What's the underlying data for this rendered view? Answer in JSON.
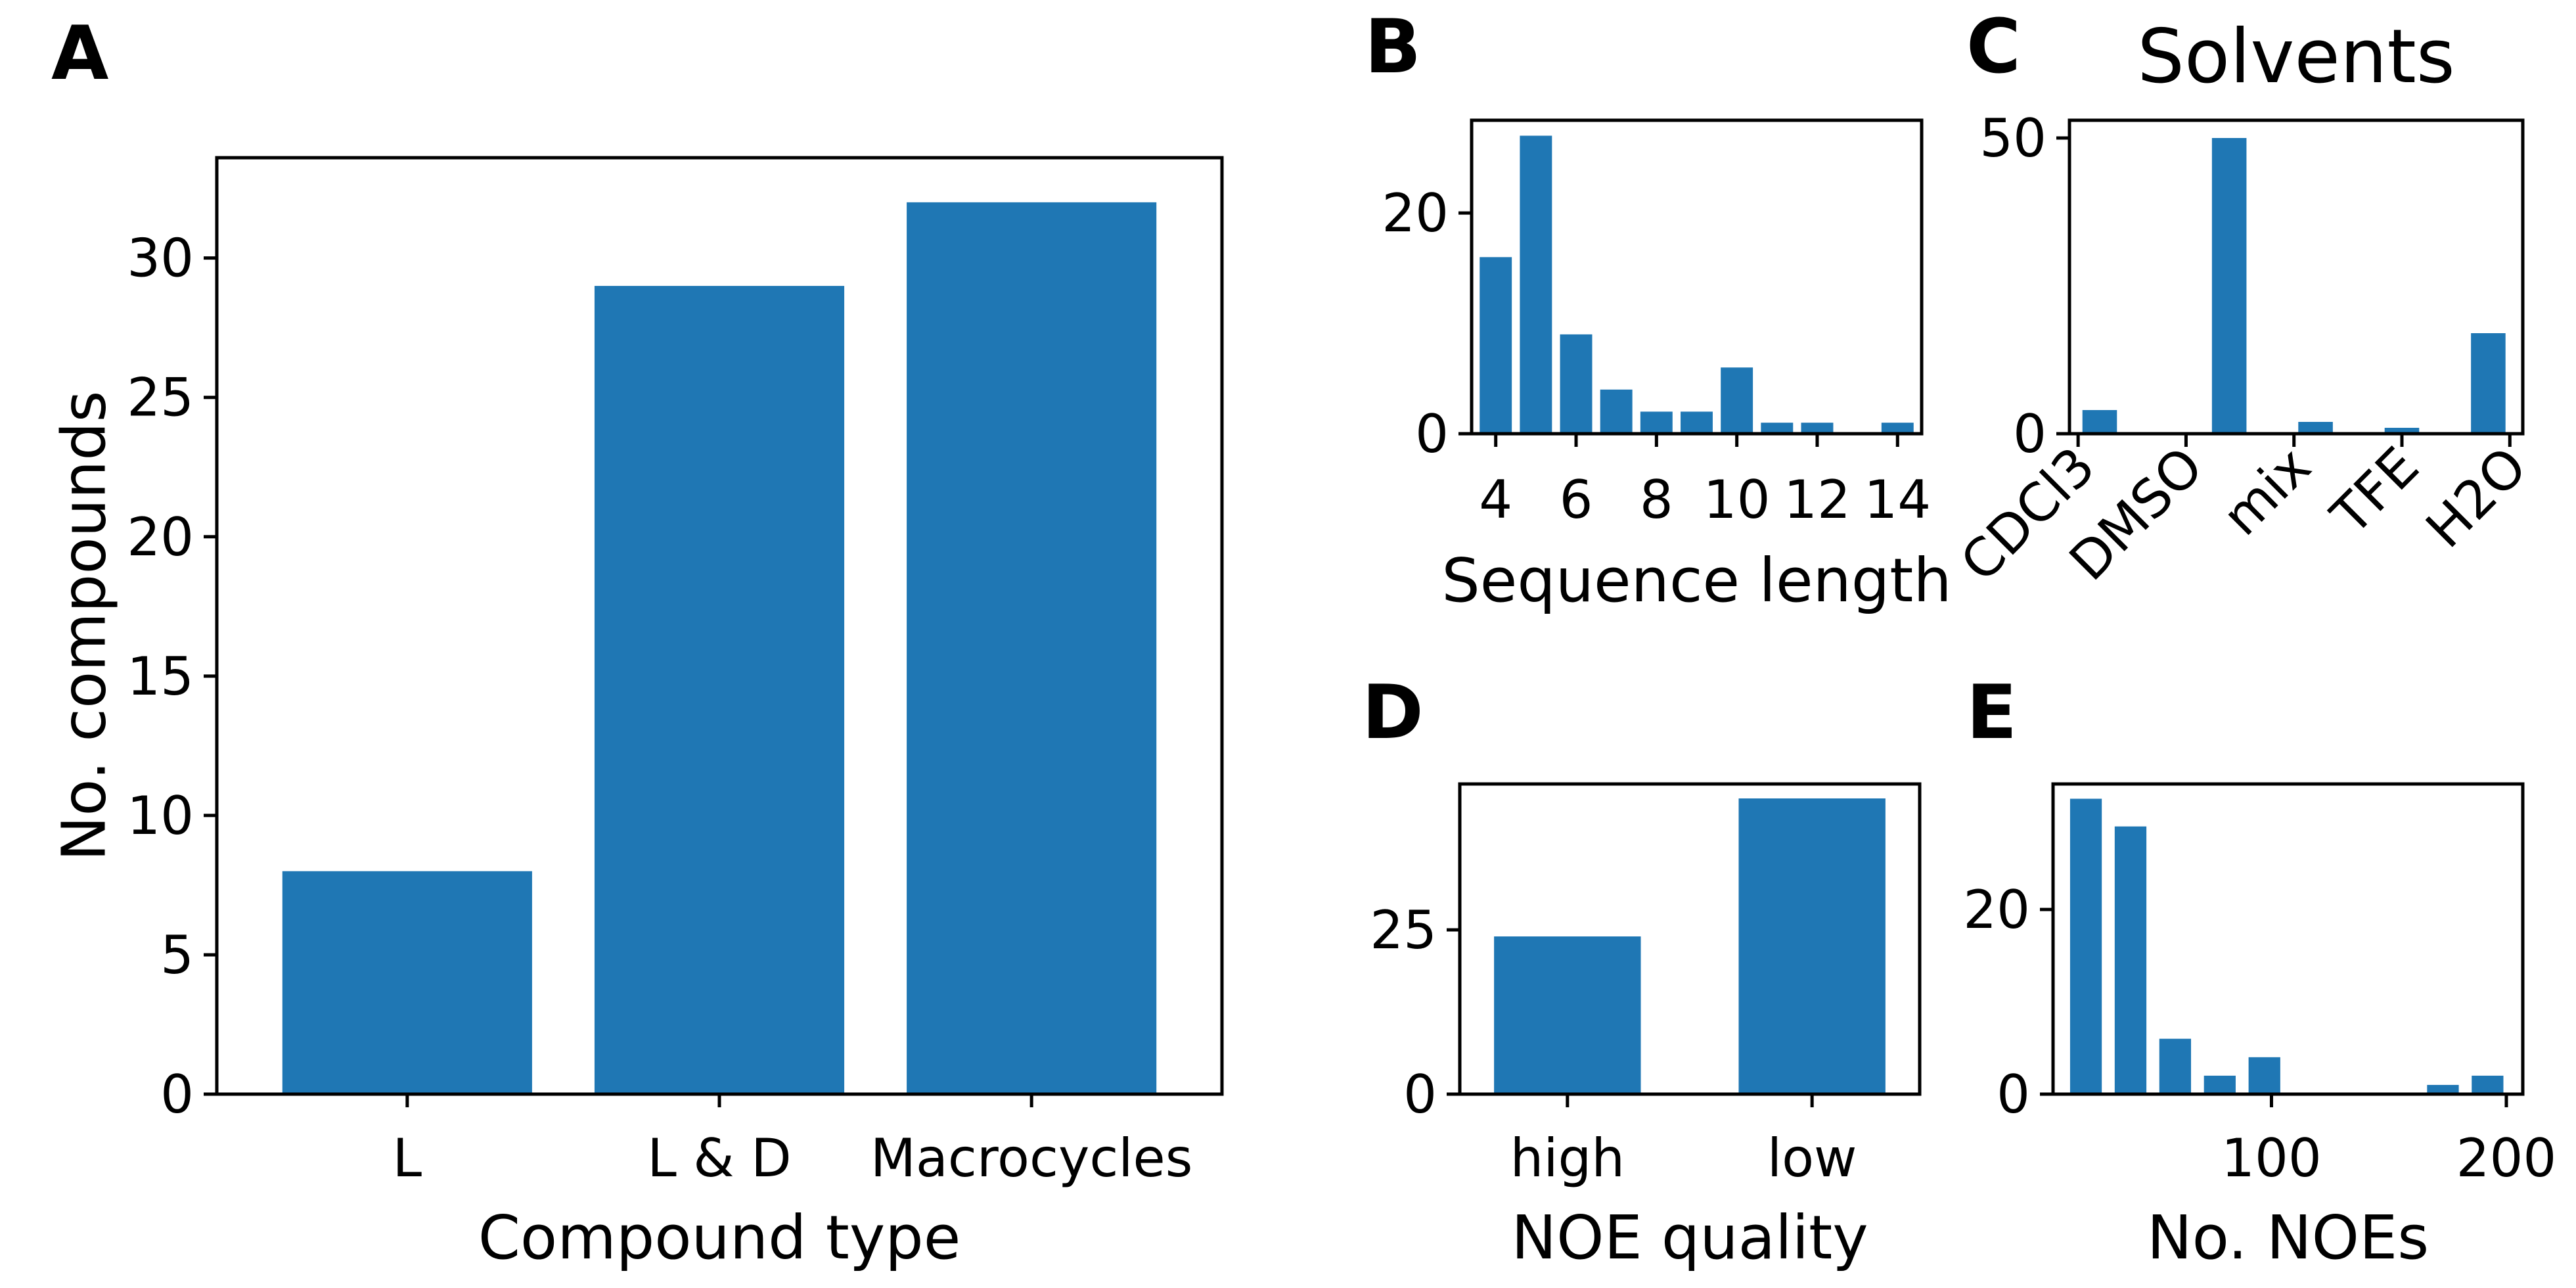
{
  "chart_data": [
    {
      "panel": "A",
      "type": "bar",
      "categories": [
        "L",
        "L & D",
        "Macrocycles"
      ],
      "values": [
        8,
        29,
        32
      ],
      "title": "",
      "xlabel": "Compound type",
      "ylabel": "No. compounds",
      "ylim": [
        0,
        33.6
      ],
      "yticks": [
        0,
        5,
        10,
        15,
        20,
        25,
        30
      ],
      "color": "#1f77b4",
      "grid": false
    },
    {
      "panel": "B",
      "type": "bar",
      "x": [
        4,
        5,
        6,
        7,
        8,
        9,
        10,
        11,
        12,
        14
      ],
      "values": [
        16,
        27,
        9,
        4,
        2,
        2,
        6,
        1,
        1,
        1
      ],
      "title": "",
      "xlabel": "Sequence length",
      "ylabel": "",
      "xlim": [
        3.4,
        14.6
      ],
      "ylim": [
        0,
        28.4
      ],
      "xticks": [
        4,
        6,
        8,
        10,
        12,
        14
      ],
      "yticks": [
        0,
        20
      ],
      "color": "#1f77b4",
      "grid": false
    },
    {
      "panel": "C",
      "type": "bar",
      "x": [
        0.25,
        1.75,
        2.75,
        3.75,
        4.75
      ],
      "values": [
        4,
        50,
        2,
        1,
        17
      ],
      "title": "Solvents",
      "xlabel": "",
      "ylabel": "",
      "xlim": [
        -0.1,
        5.15
      ],
      "ylim": [
        0,
        53
      ],
      "xtick_positions": [
        0,
        1.25,
        2.5,
        3.75,
        5
      ],
      "xtick_labels": [
        "CDCl3",
        "DMSO",
        "mix",
        "TFE",
        "H2O"
      ],
      "yticks": [
        0,
        50
      ],
      "color": "#1f77b4",
      "grid": false
    },
    {
      "panel": "D",
      "type": "bar",
      "categories": [
        "high",
        "low"
      ],
      "values": [
        24,
        45
      ],
      "title": "",
      "xlabel": "NOE quality",
      "ylabel": "",
      "ylim": [
        0,
        47.2
      ],
      "yticks": [
        0,
        25
      ],
      "color": "#1f77b4",
      "grid": false
    },
    {
      "panel": "E",
      "type": "bar",
      "x": [
        21,
        40,
        59,
        78,
        97,
        173,
        192
      ],
      "values": [
        32,
        29,
        6,
        2,
        4,
        1,
        2
      ],
      "title": "",
      "xlabel": "No. NOEs",
      "ylabel": "",
      "xlim": [
        7,
        207
      ],
      "ylim": [
        0,
        33.6
      ],
      "xticks": [
        100,
        200
      ],
      "yticks": [
        0,
        20
      ],
      "color": "#1f77b4",
      "grid": false
    }
  ]
}
